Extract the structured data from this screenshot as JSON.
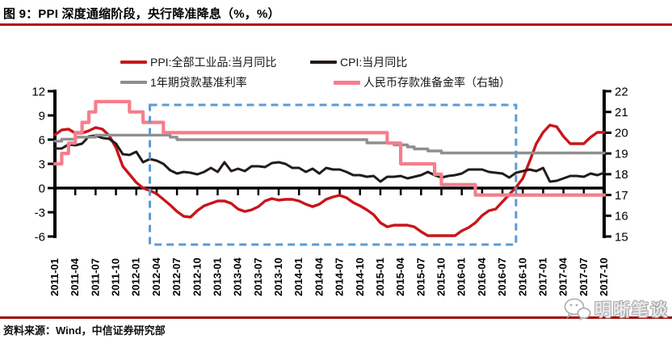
{
  "header": {
    "figure_label": "图 9：PPI 深度通缩阶段，央行降准降息（%，%）"
  },
  "footer": {
    "source": "资料来源：Wind，中信证券研究部"
  },
  "watermark": {
    "text": "明晰笔谈",
    "icon": "wechat-bubbles-icon"
  },
  "colors": {
    "title_rule": "#b51010",
    "footer_rule": "#9c0b0b",
    "highlight_box": "#5b9bd5",
    "axis": "#000000"
  },
  "chart_data": {
    "type": "line",
    "title": "",
    "xlabel": "",
    "ylabel_left": "%",
    "ylabel_right": "%",
    "x_monthly_start": "2011-01",
    "x_monthly_end": "2017-10",
    "n_months": 82,
    "grid": false,
    "legend_position": "top",
    "x_tick_labels": [
      "2011-01",
      "2011-04",
      "2011-07",
      "2011-10",
      "2012-01",
      "2012-04",
      "2012-07",
      "2012-10",
      "2013-01",
      "2013-04",
      "2013-07",
      "2013-10",
      "2014-01",
      "2014-04",
      "2014-07",
      "2014-10",
      "2015-01",
      "2015-04",
      "2015-07",
      "2015-10",
      "2016-01",
      "2016-04",
      "2016-07",
      "2016-10",
      "2017-01",
      "2017-04",
      "2017-07",
      "2017-10"
    ],
    "left_axis": {
      "min": -6,
      "max": 12,
      "ticks": [
        12,
        9,
        6,
        3,
        0,
        -3,
        -6
      ],
      "tick_labels": [
        "12",
        "9",
        "6",
        "3",
        "0",
        "-3",
        "-6"
      ]
    },
    "right_axis": {
      "min": 15,
      "max": 22,
      "ticks": [
        22,
        21,
        20,
        19,
        18,
        17,
        16,
        15
      ],
      "tick_labels": [
        "22",
        "21",
        "20",
        "19",
        "18",
        "17",
        "16",
        "15"
      ]
    },
    "highlight_box": {
      "from_month": "2012-03",
      "to_month": "2016-09",
      "color": "#5b9bd5",
      "style": "dashed",
      "spans_below_axis": true
    },
    "series": [
      {
        "id": "ppi",
        "name": "PPI:全部工业品:当月同比",
        "color": "#c9151b",
        "axis": "left",
        "step": false,
        "width": 3.4,
        "values": [
          6.6,
          7.2,
          7.3,
          6.8,
          6.8,
          7.1,
          7.5,
          7.3,
          6.5,
          5.0,
          2.7,
          1.7,
          0.7,
          0.0,
          -0.3,
          -0.7,
          -1.4,
          -2.1,
          -2.9,
          -3.5,
          -3.6,
          -2.8,
          -2.2,
          -1.9,
          -1.6,
          -1.6,
          -1.9,
          -2.6,
          -2.9,
          -2.7,
          -2.3,
          -1.6,
          -1.3,
          -1.5,
          -1.4,
          -1.4,
          -1.6,
          -2.0,
          -2.3,
          -2.0,
          -1.4,
          -1.1,
          -0.9,
          -1.2,
          -1.8,
          -2.2,
          -2.7,
          -3.3,
          -4.3,
          -4.8,
          -4.6,
          -4.6,
          -4.6,
          -4.8,
          -5.4,
          -5.9,
          -5.9,
          -5.9,
          -5.9,
          -5.9,
          -5.3,
          -4.9,
          -4.3,
          -3.4,
          -2.8,
          -2.6,
          -1.7,
          -0.8,
          0.1,
          1.2,
          3.3,
          5.5,
          6.9,
          7.8,
          7.6,
          6.4,
          5.5,
          5.5,
          5.5,
          6.3,
          6.9,
          6.9
        ]
      },
      {
        "id": "cpi",
        "name": "CPI:当月同比",
        "color": "#221b17",
        "axis": "left",
        "step": false,
        "width": 3.0,
        "values": [
          4.9,
          4.9,
          5.4,
          5.3,
          5.5,
          6.4,
          6.5,
          6.2,
          6.1,
          5.5,
          4.2,
          4.1,
          4.5,
          3.2,
          3.6,
          3.4,
          3.0,
          2.2,
          1.8,
          2.0,
          1.9,
          1.7,
          2.0,
          2.5,
          2.0,
          3.2,
          2.1,
          2.4,
          2.1,
          2.7,
          2.7,
          2.6,
          3.1,
          3.2,
          3.0,
          2.5,
          2.5,
          2.0,
          2.4,
          1.8,
          2.5,
          2.3,
          2.3,
          2.0,
          1.6,
          1.6,
          1.4,
          1.5,
          0.8,
          1.4,
          1.4,
          1.5,
          1.2,
          1.4,
          1.6,
          2.0,
          1.6,
          1.3,
          1.5,
          1.6,
          1.8,
          2.3,
          2.3,
          2.3,
          2.0,
          1.9,
          1.8,
          1.3,
          1.9,
          2.1,
          2.3,
          2.1,
          2.5,
          0.8,
          0.9,
          1.2,
          1.5,
          1.5,
          1.4,
          1.8,
          1.6,
          1.9
        ]
      },
      {
        "id": "loan-rate-1y",
        "name": "1年期贷款基准利率",
        "color": "#8f8f8f",
        "axis": "left",
        "step": true,
        "width": 3.4,
        "values": [
          5.81,
          6.06,
          6.06,
          6.31,
          6.31,
          6.31,
          6.56,
          6.56,
          6.56,
          6.56,
          6.56,
          6.56,
          6.56,
          6.56,
          6.56,
          6.56,
          6.56,
          6.31,
          6.0,
          6.0,
          6.0,
          6.0,
          6.0,
          6.0,
          6.0,
          6.0,
          6.0,
          6.0,
          6.0,
          6.0,
          6.0,
          6.0,
          6.0,
          6.0,
          6.0,
          6.0,
          6.0,
          6.0,
          6.0,
          6.0,
          6.0,
          6.0,
          6.0,
          6.0,
          6.0,
          6.0,
          5.6,
          5.6,
          5.6,
          5.6,
          5.35,
          5.35,
          5.1,
          4.85,
          4.85,
          4.6,
          4.6,
          4.35,
          4.35,
          4.35,
          4.35,
          4.35,
          4.35,
          4.35,
          4.35,
          4.35,
          4.35,
          4.35,
          4.35,
          4.35,
          4.35,
          4.35,
          4.35,
          4.35,
          4.35,
          4.35,
          4.35,
          4.35,
          4.35,
          4.35,
          4.35,
          4.35
        ]
      },
      {
        "id": "rrr",
        "name": "人民币存款准备金率（右轴）",
        "color": "#f57e8c",
        "axis": "right",
        "step": true,
        "width": 4.2,
        "values": [
          18.5,
          19.0,
          19.5,
          20.0,
          20.5,
          21.0,
          21.5,
          21.5,
          21.5,
          21.5,
          21.5,
          21.0,
          21.0,
          20.5,
          20.5,
          20.5,
          20.0,
          20.0,
          20.0,
          20.0,
          20.0,
          20.0,
          20.0,
          20.0,
          20.0,
          20.0,
          20.0,
          20.0,
          20.0,
          20.0,
          20.0,
          20.0,
          20.0,
          20.0,
          20.0,
          20.0,
          20.0,
          20.0,
          20.0,
          20.0,
          20.0,
          20.0,
          20.0,
          20.0,
          20.0,
          20.0,
          20.0,
          20.0,
          20.0,
          19.5,
          19.5,
          18.5,
          18.5,
          18.5,
          18.5,
          18.5,
          18.0,
          17.5,
          17.5,
          17.5,
          17.5,
          17.5,
          17.0,
          17.0,
          17.0,
          17.0,
          17.0,
          17.0,
          17.0,
          17.0,
          17.0,
          17.0,
          17.0,
          17.0,
          17.0,
          17.0,
          17.0,
          17.0,
          17.0,
          17.0,
          17.0,
          17.0
        ]
      }
    ]
  }
}
